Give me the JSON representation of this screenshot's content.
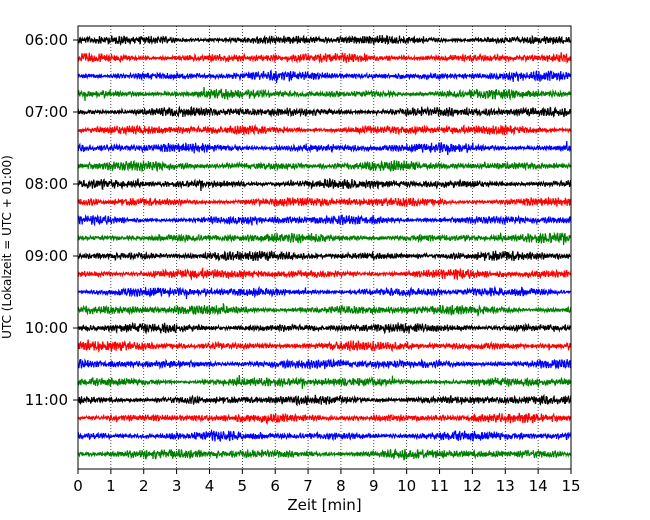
{
  "chart_data": {
    "type": "line",
    "subtype": "helicorder",
    "xlabel": "Zeit  [min]",
    "ylabel": "UTC (Lokalzeit = UTC + 01:00)",
    "xlim": [
      0,
      15
    ],
    "x_ticks": [
      0,
      1,
      2,
      3,
      4,
      5,
      6,
      7,
      8,
      9,
      10,
      11,
      12,
      13,
      14,
      15
    ],
    "x_tick_labels": [
      "0",
      "1",
      "2",
      "3",
      "4",
      "5",
      "6",
      "7",
      "8",
      "9",
      "10",
      "11",
      "12",
      "13",
      "14",
      "15"
    ],
    "y_tick_labels": [
      "06:00",
      "07:00",
      "08:00",
      "09:00",
      "10:00",
      "11:00"
    ],
    "y_ticks_trace_index": [
      0,
      4,
      8,
      12,
      16,
      20
    ],
    "trace_interval_min": 15,
    "grid": "vertical dotted lines at each minute",
    "trace_colors": [
      "#000000",
      "#ff0000",
      "#0000ff",
      "#008000"
    ],
    "traces": [
      {
        "start": "06:00",
        "color": "#000000"
      },
      {
        "start": "06:15",
        "color": "#ff0000"
      },
      {
        "start": "06:30",
        "color": "#0000ff"
      },
      {
        "start": "06:45",
        "color": "#008000"
      },
      {
        "start": "07:00",
        "color": "#000000"
      },
      {
        "start": "07:15",
        "color": "#ff0000"
      },
      {
        "start": "07:30",
        "color": "#0000ff"
      },
      {
        "start": "07:45",
        "color": "#008000"
      },
      {
        "start": "08:00",
        "color": "#000000"
      },
      {
        "start": "08:15",
        "color": "#ff0000"
      },
      {
        "start": "08:30",
        "color": "#0000ff"
      },
      {
        "start": "08:45",
        "color": "#008000"
      },
      {
        "start": "09:00",
        "color": "#000000"
      },
      {
        "start": "09:15",
        "color": "#ff0000"
      },
      {
        "start": "09:30",
        "color": "#0000ff"
      },
      {
        "start": "09:45",
        "color": "#008000"
      },
      {
        "start": "10:00",
        "color": "#000000"
      },
      {
        "start": "10:15",
        "color": "#ff0000"
      },
      {
        "start": "10:30",
        "color": "#0000ff"
      },
      {
        "start": "10:45",
        "color": "#008000"
      },
      {
        "start": "11:00",
        "color": "#000000"
      },
      {
        "start": "11:15",
        "color": "#ff0000"
      },
      {
        "start": "11:30",
        "color": "#0000ff"
      },
      {
        "start": "11:45",
        "color": "#008000"
      }
    ]
  }
}
